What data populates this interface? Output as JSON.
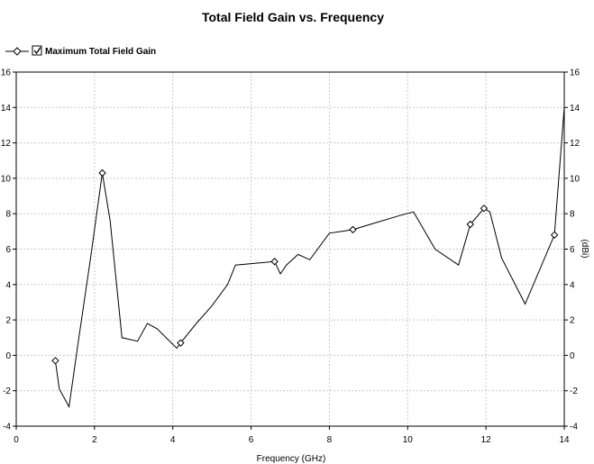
{
  "chart_data": {
    "type": "line",
    "title": "Total Field Gain vs. Frequency",
    "xlabel": "Frequency (GHz)",
    "ylabel": "",
    "y2label": "(dBi)",
    "xlim": [
      0,
      14
    ],
    "ylim": [
      -4,
      16
    ],
    "xticks": [
      0,
      2,
      4,
      6,
      8,
      10,
      12,
      14
    ],
    "yticks": [
      -4,
      -2,
      0,
      2,
      4,
      6,
      8,
      10,
      12,
      14,
      16
    ],
    "grid": true,
    "legend_position": "top-left",
    "series": [
      {
        "name": "Maximum Total Field Gain",
        "color": "#000000",
        "x": [
          1.0,
          1.1,
          1.35,
          1.6,
          1.9,
          2.2,
          2.4,
          2.7,
          3.1,
          3.35,
          3.6,
          4.1,
          4.2,
          4.6,
          5.0,
          5.4,
          5.6,
          6.1,
          6.6,
          6.75,
          6.9,
          7.2,
          7.5,
          8.0,
          8.3,
          8.6,
          9.2,
          9.8,
          10.15,
          10.7,
          11.3,
          11.6,
          11.95,
          12.1,
          12.4,
          13.0,
          13.75,
          14.0
        ],
        "y": [
          -0.3,
          -1.9,
          -2.9,
          1.0,
          5.5,
          10.3,
          7.6,
          1.0,
          0.8,
          1.8,
          1.5,
          0.4,
          0.7,
          1.8,
          2.8,
          4.0,
          5.1,
          5.2,
          5.3,
          4.6,
          5.1,
          5.7,
          5.4,
          6.9,
          7.0,
          7.1,
          7.5,
          7.9,
          8.1,
          6.0,
          5.1,
          7.4,
          8.3,
          8.1,
          5.5,
          2.9,
          6.8,
          14.0
        ],
        "markers_at_x": [
          1.0,
          2.2,
          4.2,
          6.6,
          8.6,
          11.6,
          11.95,
          13.75
        ]
      }
    ]
  }
}
